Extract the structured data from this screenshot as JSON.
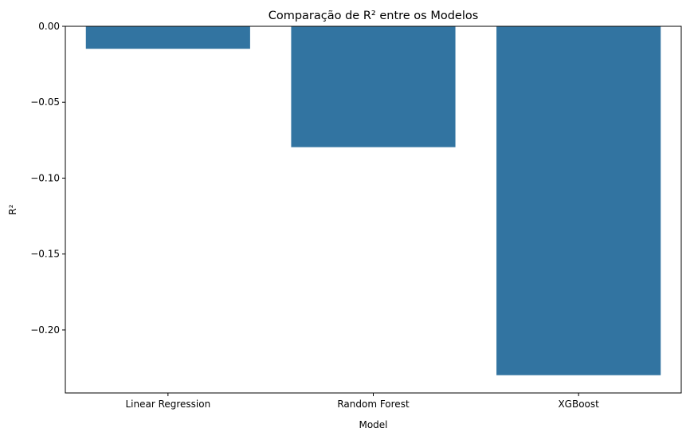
{
  "chart_data": {
    "type": "bar",
    "title": "Comparação de R² entre os Modelos",
    "xlabel": "Model",
    "ylabel": "R²",
    "categories": [
      "Linear Regression",
      "Random Forest",
      "XGBoost"
    ],
    "values": [
      -0.0148,
      -0.0796,
      -0.2298
    ],
    "ylim": [
      -0.2415,
      0.0
    ],
    "yticks": [
      0.0,
      -0.05,
      -0.1,
      -0.15,
      -0.2
    ],
    "ytick_labels": [
      "0.00",
      "−0.05",
      "−0.10",
      "−0.15",
      "−0.20"
    ],
    "bar_color": "#3274a1",
    "grid": false,
    "legend": "none"
  }
}
